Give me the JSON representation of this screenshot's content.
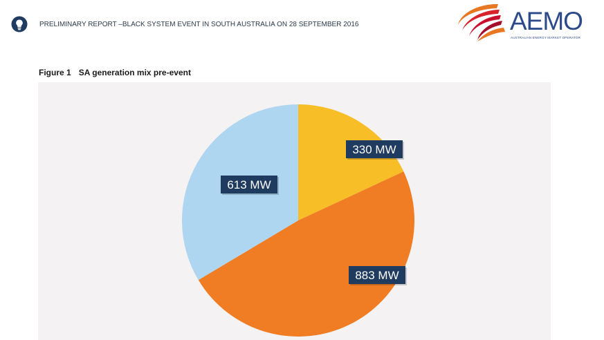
{
  "header": {
    "title": "PRELIMINARY REPORT –BLACK SYSTEM EVENT IN SOUTH AUSTRALIA ON 28 SEPTEMBER 2016",
    "icon": "lightbulb-icon"
  },
  "logo": {
    "wordmark": "AEMO",
    "tagline": "AUSTRALIAN ENERGY MARKET OPERATOR",
    "colors": [
      "#c8102e",
      "#e87722"
    ]
  },
  "figure": {
    "number": "Figure 1",
    "caption": "SA generation mix pre-event"
  },
  "chart_data": {
    "type": "pie",
    "start_angle_deg": 0,
    "direction": "clockwise",
    "slices": [
      {
        "label": "330 MW",
        "value": 330,
        "color": "#f8be28"
      },
      {
        "label": "883 MW",
        "value": 883,
        "color": "#f07c23"
      },
      {
        "label": "613 MW",
        "value": 613,
        "color": "#afd6f0"
      }
    ],
    "background": "#f4f2f2",
    "label_box_color": "#1f3b60",
    "legend": "none"
  }
}
